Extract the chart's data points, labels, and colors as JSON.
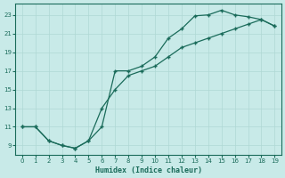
{
  "xlabel": "Humidex (Indice chaleur)",
  "bg_color": "#c8eae8",
  "grid_color": "#afd8d4",
  "line_color": "#1a6b5a",
  "xlim": [
    -0.5,
    19.5
  ],
  "ylim": [
    8.0,
    24.2
  ],
  "xticks": [
    0,
    1,
    2,
    3,
    4,
    5,
    6,
    7,
    8,
    9,
    10,
    11,
    12,
    13,
    14,
    15,
    16,
    17,
    18,
    19
  ],
  "yticks": [
    9,
    11,
    13,
    15,
    17,
    19,
    21,
    23
  ],
  "upper_x": [
    0,
    1,
    2,
    3,
    4,
    5,
    6,
    7,
    8,
    9,
    10,
    11,
    12,
    13,
    14,
    15,
    16,
    17,
    18,
    19
  ],
  "upper_y": [
    11,
    11,
    9.5,
    9.0,
    8.7,
    9.5,
    11.0,
    17.0,
    17.0,
    17.5,
    18.5,
    20.5,
    21.5,
    22.9,
    23.0,
    23.5,
    23.0,
    22.8,
    22.5,
    21.8
  ],
  "lower_x": [
    0,
    1,
    2,
    3,
    4,
    5,
    6,
    7,
    8,
    9,
    10,
    11,
    12,
    13,
    14,
    15,
    16,
    17,
    18,
    19
  ],
  "lower_y": [
    11,
    11,
    9.5,
    9.0,
    8.7,
    9.5,
    13.0,
    15.0,
    16.5,
    17.0,
    17.5,
    18.5,
    19.5,
    20.0,
    20.5,
    21.0,
    21.5,
    22.0,
    22.5,
    21.8
  ]
}
